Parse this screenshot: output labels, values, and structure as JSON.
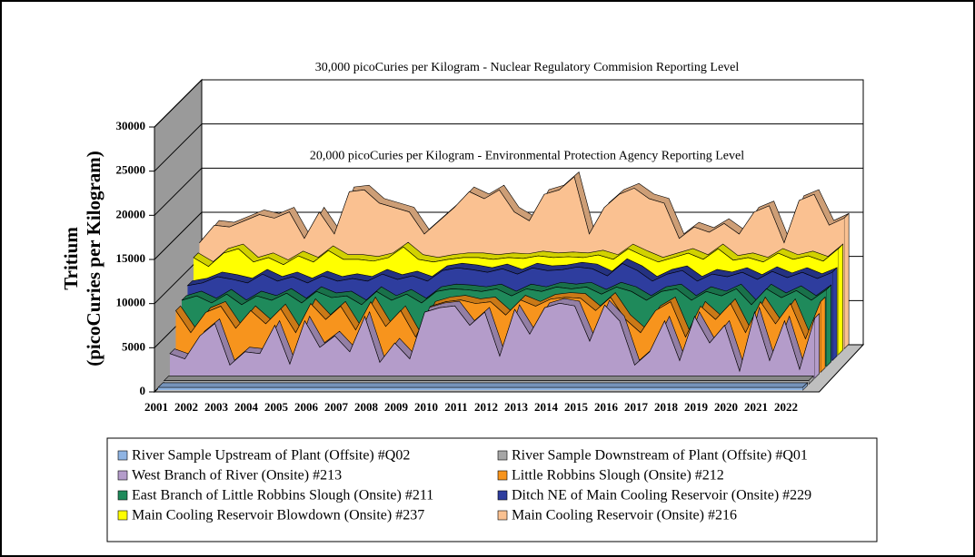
{
  "chart_data": {
    "type": "area3d",
    "y_label": "Tritium",
    "y_label_sub": "(picoCuries per Kilogram)",
    "annotations": [
      {
        "text": "30,000 picoCuries per Kilogram - Nuclear Regulatory Commision Reporting Level",
        "y": 30000
      },
      {
        "text": "20,000 picoCuries per Kilogram - Environmental Protection Agency Reporting Level",
        "y": 20000
      }
    ],
    "categories": [
      "2001",
      null,
      "2002",
      null,
      "2003",
      null,
      "2004",
      null,
      "2005",
      null,
      "2006",
      null,
      "2007",
      null,
      "2008",
      null,
      "2009",
      null,
      "2010",
      null,
      "2011",
      null,
      "2012",
      null,
      "2013",
      null,
      "2014",
      null,
      "2015",
      null,
      "2016",
      null,
      "2017",
      null,
      "2018",
      null,
      "2019",
      null,
      "2020",
      null,
      "2021",
      null,
      "2022",
      null
    ],
    "ylim": [
      0,
      30000
    ],
    "yticks": [
      0,
      5000,
      10000,
      15000,
      20000,
      25000,
      30000
    ],
    "grid": true,
    "series": [
      {
        "name": "River Sample Upstream of Plant (Offsite)  #Q02",
        "color": "#8fb4e3",
        "values": [
          300,
          300,
          300,
          300,
          300,
          300,
          300,
          300,
          300,
          300,
          300,
          300,
          300,
          300,
          300,
          300,
          300,
          300,
          300,
          300,
          300,
          300,
          300,
          300,
          300,
          300,
          300,
          300,
          300,
          300,
          300,
          300,
          300,
          300,
          300,
          300,
          300,
          300,
          300,
          300,
          300,
          300,
          300,
          300
        ]
      },
      {
        "name": "River Sample Downstream of Plant (Offsite)  #Q01",
        "color": "#a6a6a6",
        "values": [
          400,
          400,
          400,
          400,
          400,
          400,
          400,
          400,
          400,
          400,
          400,
          400,
          400,
          400,
          400,
          400,
          400,
          400,
          400,
          400,
          400,
          400,
          400,
          400,
          400,
          400,
          400,
          400,
          400,
          400,
          400,
          400,
          400,
          400,
          400,
          400,
          400,
          400,
          400,
          400,
          400,
          400,
          400,
          400
        ]
      },
      {
        "name": "West Branch of River (Onsite)  #213",
        "color": "#b49cca",
        "values": [
          2800,
          2200,
          4800,
          6200,
          1500,
          3000,
          2800,
          6000,
          1600,
          6500,
          3500,
          4800,
          3000,
          7000,
          1800,
          4000,
          2200,
          7500,
          8000,
          8200,
          6000,
          7500,
          2500,
          7800,
          5000,
          8000,
          8500,
          8200,
          4200,
          8300,
          6500,
          1500,
          3000,
          6500,
          2000,
          7000,
          4000,
          6000,
          800,
          7500,
          2000,
          6500,
          1000,
          6800
        ]
      },
      {
        "name": "Little Robbins Slough (Onsite)  #212",
        "color": "#f7941d",
        "values": [
          7000,
          4500,
          6800,
          7500,
          5000,
          7000,
          5500,
          7200,
          4500,
          7800,
          6000,
          7500,
          4800,
          8000,
          5200,
          7000,
          4000,
          7500,
          8000,
          8200,
          7800,
          8000,
          6500,
          8200,
          7500,
          8300,
          8500,
          8400,
          7000,
          8500,
          6000,
          4500,
          7000,
          8000,
          4000,
          7500,
          6000,
          7800,
          4500,
          8000,
          5500,
          7800,
          3800,
          8000
        ]
      },
      {
        "name": "East Branch of Little Robbins Slough (Onsite)  #211",
        "color": "#1f8a5b",
        "values": [
          7500,
          8000,
          7200,
          8200,
          7000,
          8000,
          7500,
          8300,
          7200,
          8500,
          7800,
          8000,
          7000,
          8500,
          7500,
          8200,
          7200,
          8500,
          8800,
          8700,
          8500,
          8800,
          8000,
          8800,
          8500,
          9000,
          8800,
          9000,
          8200,
          9000,
          8500,
          7500,
          8500,
          8800,
          7500,
          8500,
          8000,
          8800,
          7000,
          8800,
          7800,
          8600,
          7500,
          8700
        ]
      },
      {
        "name": "Ditch NE of Main Cooling Reservoir (Onsite)  #229",
        "color": "#2e3d9e",
        "values": [
          8500,
          8800,
          9500,
          9200,
          8800,
          9800,
          9000,
          9500,
          8800,
          9600,
          9000,
          9300,
          9000,
          9800,
          9200,
          9600,
          9000,
          10200,
          10500,
          10300,
          10000,
          10400,
          9800,
          10500,
          10200,
          10300,
          10600,
          10400,
          9600,
          11000,
          10200,
          9000,
          9800,
          10200,
          9000,
          9800,
          9500,
          10000,
          9200,
          10100,
          9400,
          10000,
          9300,
          10000
        ]
      },
      {
        "name": "Main Cooling Reservoir  Blowdown (Onsite)  #237",
        "color": "#ffff00",
        "values": [
          11000,
          10000,
          11500,
          12000,
          10500,
          11000,
          10200,
          11200,
          10500,
          11800,
          10800,
          10800,
          10600,
          11000,
          12200,
          10800,
          10500,
          10800,
          11000,
          11000,
          10800,
          11000,
          10900,
          11200,
          11000,
          11100,
          11000,
          11300,
          10800,
          12000,
          11200,
          10500,
          11000,
          11500,
          10800,
          12000,
          10700,
          11000,
          10500,
          11500,
          10800,
          11200,
          10600,
          12000
        ]
      },
      {
        "name": "Main Cooling Reservoir (Onsite)  #216",
        "color": "#fac191",
        "values": [
          12000,
          14000,
          13800,
          14500,
          15200,
          14800,
          15500,
          12500,
          15500,
          13000,
          17800,
          18000,
          16500,
          16000,
          15500,
          13000,
          14500,
          16000,
          17800,
          17000,
          18000,
          15500,
          14500,
          17500,
          18000,
          19500,
          13000,
          16000,
          17500,
          18200,
          17000,
          16500,
          12500,
          13800,
          13200,
          14200,
          13000,
          15500,
          16200,
          12000,
          16800,
          17500,
          14000,
          14800
        ]
      }
    ]
  }
}
